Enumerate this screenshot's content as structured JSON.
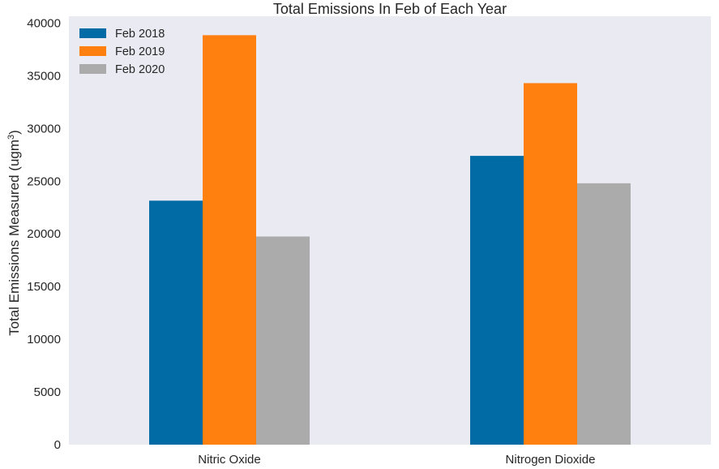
{
  "chart_data": {
    "type": "bar",
    "title": "Total Emissions In Feb of Each Year",
    "xlabel": "",
    "ylabel": "Total Emissions Measured (ugm",
    "ylabel_sup": "3",
    "ylabel_suffix": ")",
    "categories": [
      "Nitric Oxide",
      "Nitrogen Dioxide"
    ],
    "series": [
      {
        "name": "Feb 2018",
        "color": "#006ba4",
        "values": [
          23150,
          27400
        ]
      },
      {
        "name": "Feb 2019",
        "color": "#ff800e",
        "values": [
          38850,
          34300
        ]
      },
      {
        "name": "Feb 2020",
        "color": "#ababab",
        "values": [
          19750,
          24800
        ]
      }
    ],
    "ylim": [
      0,
      40650
    ],
    "yticks": [
      0,
      5000,
      10000,
      15000,
      20000,
      25000,
      30000,
      35000,
      40000
    ],
    "grid": false,
    "legend": "top-left",
    "background": "#eaeaf2"
  }
}
